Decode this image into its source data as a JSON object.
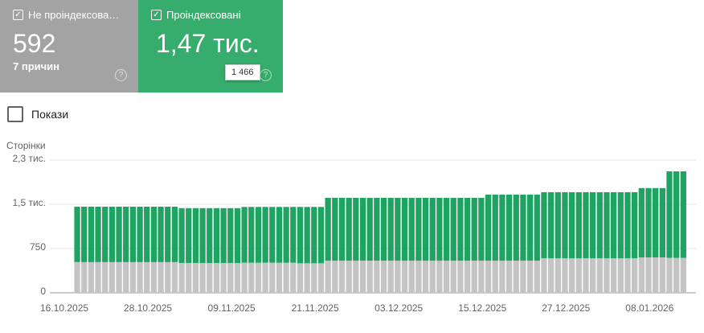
{
  "cards": [
    {
      "label": "Не проіндексова…",
      "value": 592,
      "sub": "7 причин"
    },
    {
      "label": "Проіндексовані",
      "value": "1,47 тис.",
      "tooltip": "1 466"
    }
  ],
  "checkbox": "Покази",
  "chart_data": {
    "type": "stacked_bar",
    "y_label": "Сторінки",
    "categories": [
      "16.10.2025",
      null,
      null,
      null,
      null,
      null,
      null,
      null,
      null,
      null,
      null,
      null,
      "28.10.2025",
      null,
      null,
      null,
      null,
      null,
      null,
      null,
      null,
      null,
      null,
      null,
      "09.11.2025",
      null,
      null,
      null,
      null,
      null,
      null,
      null,
      null,
      null,
      null,
      null,
      "21.11.2025",
      null,
      null,
      null,
      null,
      null,
      null,
      null,
      null,
      null,
      null,
      null,
      "03.12.2025",
      null,
      null,
      null,
      null,
      null,
      null,
      null,
      null,
      null,
      null,
      null,
      "15.12.2025",
      null,
      null,
      null,
      null,
      null,
      null,
      null,
      null,
      null,
      null,
      null,
      "27.12.2025",
      null,
      null,
      null,
      null,
      null,
      null,
      null,
      null,
      null,
      null,
      null,
      "08.01.2026",
      null,
      null,
      null
    ],
    "series": [
      {
        "color": "#c4c4c4",
        "values": [
          520,
          520,
          520,
          520,
          520,
          520,
          520,
          520,
          520,
          520,
          520,
          520,
          520,
          520,
          520,
          505,
          505,
          505,
          505,
          505,
          505,
          505,
          505,
          505,
          510,
          510,
          510,
          510,
          510,
          510,
          510,
          510,
          500,
          500,
          500,
          500,
          545,
          545,
          545,
          545,
          545,
          545,
          545,
          545,
          545,
          545,
          545,
          545,
          545,
          545,
          545,
          545,
          545,
          545,
          545,
          545,
          545,
          545,
          545,
          545,
          545,
          545,
          545,
          545,
          545,
          545,
          545,
          585,
          585,
          585,
          585,
          585,
          585,
          585,
          585,
          585,
          585,
          585,
          585,
          585,
          585,
          600,
          600,
          600,
          600,
          592,
          592,
          592
        ]
      },
      {
        "color": "#1ea362",
        "values": [
          940,
          940,
          940,
          940,
          940,
          940,
          940,
          940,
          940,
          940,
          940,
          940,
          940,
          940,
          940,
          930,
          930,
          930,
          930,
          930,
          930,
          930,
          930,
          930,
          945,
          945,
          945,
          945,
          945,
          945,
          945,
          945,
          955,
          955,
          955,
          955,
          1065,
          1065,
          1065,
          1065,
          1065,
          1065,
          1065,
          1065,
          1065,
          1065,
          1065,
          1065,
          1065,
          1065,
          1065,
          1065,
          1065,
          1065,
          1065,
          1065,
          1065,
          1065,
          1065,
          1120,
          1120,
          1120,
          1120,
          1120,
          1120,
          1120,
          1120,
          1120,
          1120,
          1120,
          1120,
          1120,
          1120,
          1120,
          1120,
          1120,
          1120,
          1120,
          1120,
          1120,
          1120,
          1175,
          1175,
          1175,
          1175,
          1466,
          1466,
          1466
        ]
      }
    ],
    "ylim": [
      0,
      2250
    ],
    "yticks": [
      0,
      750,
      {
        "value": 1500,
        "label": "1,5 тис."
      },
      {
        "value": 2250,
        "label": "2,3 тис."
      }
    ],
    "grid": true
  }
}
